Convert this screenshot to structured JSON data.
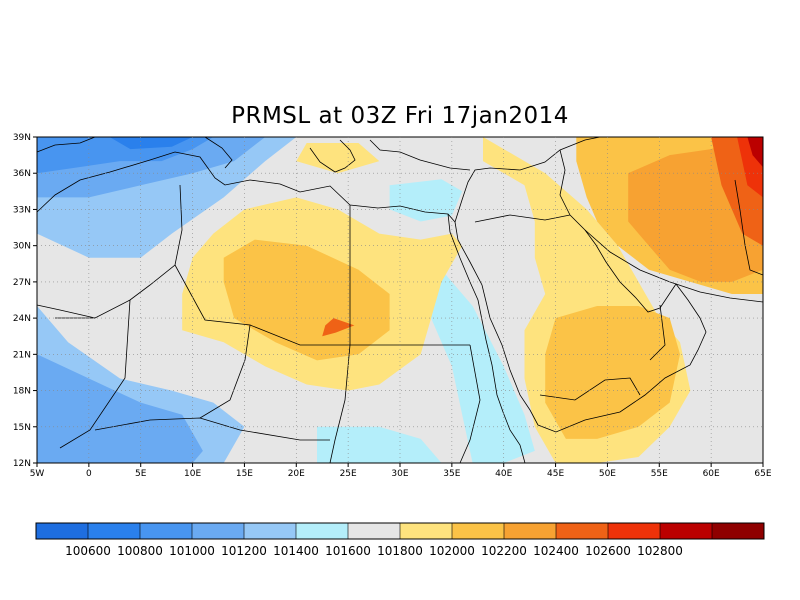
{
  "title": "PRMSL at 03Z Fri 17jan2014",
  "map": {
    "lon_range": [
      -5,
      65
    ],
    "lat_range": [
      12,
      39
    ],
    "x_ticks": [
      {
        "lon": -5,
        "label": "5W"
      },
      {
        "lon": 0,
        "label": "0"
      },
      {
        "lon": 5,
        "label": "5E"
      },
      {
        "lon": 10,
        "label": "10E"
      },
      {
        "lon": 15,
        "label": "15E"
      },
      {
        "lon": 20,
        "label": "20E"
      },
      {
        "lon": 25,
        "label": "25E"
      },
      {
        "lon": 30,
        "label": "30E"
      },
      {
        "lon": 35,
        "label": "35E"
      },
      {
        "lon": 40,
        "label": "40E"
      },
      {
        "lon": 45,
        "label": "45E"
      },
      {
        "lon": 50,
        "label": "50E"
      },
      {
        "lon": 55,
        "label": "55E"
      },
      {
        "lon": 60,
        "label": "60E"
      },
      {
        "lon": 65,
        "label": "65E"
      }
    ],
    "y_ticks": [
      {
        "lat": 12,
        "label": "12N"
      },
      {
        "lat": 15,
        "label": "15N"
      },
      {
        "lat": 18,
        "label": "18N"
      },
      {
        "lat": 21,
        "label": "21N"
      },
      {
        "lat": 24,
        "label": "24N"
      },
      {
        "lat": 27,
        "label": "27N"
      },
      {
        "lat": 30,
        "label": "30N"
      },
      {
        "lat": 33,
        "label": "33N"
      },
      {
        "lat": 36,
        "label": "36N"
      },
      {
        "lat": 39,
        "label": "39N"
      }
    ],
    "grid": "dotted"
  },
  "colorbar": {
    "colors": [
      "#1e6ee0",
      "#2a80ec",
      "#4895f0",
      "#6aaaf2",
      "#96c8f6",
      "#b4eefa",
      "#e6e6e6",
      "#fee37e",
      "#fbc347",
      "#f7a232",
      "#ef6216",
      "#ee3209",
      "#bb0000",
      "#8f0000"
    ],
    "labels": [
      "100600",
      "100800",
      "101000",
      "101200",
      "101400",
      "101600",
      "101800",
      "102000",
      "102200",
      "102400",
      "102600",
      "102800"
    ]
  },
  "regions": [
    {
      "color": "#96c8f6",
      "lonlat": [
        [
          -5,
          25
        ],
        [
          -2,
          22
        ],
        [
          3,
          19
        ],
        [
          8,
          18
        ],
        [
          12,
          17
        ],
        [
          15,
          15
        ],
        [
          13,
          12
        ],
        [
          -5,
          12
        ]
      ]
    },
    {
      "color": "#6aaaf2",
      "lonlat": [
        [
          -5,
          21
        ],
        [
          0,
          19
        ],
        [
          5,
          17
        ],
        [
          9,
          16
        ],
        [
          11,
          13
        ],
        [
          10,
          12
        ],
        [
          -5,
          12
        ]
      ]
    },
    {
      "color": "#96c8f6",
      "lonlat": [
        [
          -5,
          39
        ],
        [
          20,
          39
        ],
        [
          17,
          37
        ],
        [
          13,
          34
        ],
        [
          8,
          31
        ],
        [
          5,
          29
        ],
        [
          0,
          29
        ],
        [
          -5,
          31
        ]
      ]
    },
    {
      "color": "#6aaaf2",
      "lonlat": [
        [
          -5,
          39
        ],
        [
          17,
          39
        ],
        [
          14,
          37
        ],
        [
          10,
          36
        ],
        [
          5,
          35
        ],
        [
          0,
          34
        ],
        [
          -5,
          34
        ]
      ]
    },
    {
      "color": "#4895f0",
      "lonlat": [
        [
          -5,
          39
        ],
        [
          12,
          39
        ],
        [
          10,
          38
        ],
        [
          7,
          37
        ],
        [
          3,
          37
        ],
        [
          -1,
          36.5
        ],
        [
          -5,
          36
        ]
      ]
    },
    {
      "color": "#2a80ec",
      "lonlat": [
        [
          2,
          39
        ],
        [
          10,
          39
        ],
        [
          8,
          38.2
        ],
        [
          4,
          38
        ]
      ]
    },
    {
      "color": "#b4eefa",
      "lonlat": [
        [
          29,
          35
        ],
        [
          34,
          35.5
        ],
        [
          36,
          34.5
        ],
        [
          35,
          32.5
        ],
        [
          32,
          32
        ],
        [
          29,
          33
        ]
      ]
    },
    {
      "color": "#b4eefa",
      "lonlat": [
        [
          34,
          28
        ],
        [
          37,
          25
        ],
        [
          40,
          20
        ],
        [
          42,
          16
        ],
        [
          43,
          13
        ],
        [
          40,
          12
        ],
        [
          37,
          12
        ],
        [
          36,
          16
        ],
        [
          35,
          20
        ],
        [
          33,
          24
        ],
        [
          32,
          27
        ]
      ]
    },
    {
      "color": "#b4eefa",
      "lonlat": [
        [
          22,
          15
        ],
        [
          28,
          15
        ],
        [
          32,
          14
        ],
        [
          34,
          12
        ],
        [
          22,
          12
        ]
      ]
    },
    {
      "color": "#fee37e",
      "lonlat": [
        [
          12,
          31
        ],
        [
          15,
          33
        ],
        [
          20,
          34
        ],
        [
          24,
          33
        ],
        [
          28,
          31
        ],
        [
          32,
          30.5
        ],
        [
          35,
          31
        ],
        [
          36,
          30
        ],
        [
          34,
          27
        ],
        [
          33,
          24
        ],
        [
          32,
          21
        ],
        [
          28,
          18.5
        ],
        [
          25,
          18
        ],
        [
          21,
          18.5
        ],
        [
          17,
          20
        ],
        [
          13,
          22
        ],
        [
          9,
          23
        ],
        [
          9,
          26
        ],
        [
          10,
          29
        ]
      ]
    },
    {
      "color": "#fee37e",
      "lonlat": [
        [
          20,
          37
        ],
        [
          24,
          36
        ],
        [
          28,
          37
        ],
        [
          26,
          38.5
        ],
        [
          21,
          38.5
        ]
      ]
    },
    {
      "color": "#fee37e",
      "lonlat": [
        [
          38,
          39
        ],
        [
          44,
          36
        ],
        [
          48,
          33
        ],
        [
          51,
          30
        ],
        [
          53,
          27
        ],
        [
          55,
          24
        ],
        [
          57,
          22
        ],
        [
          58,
          18
        ],
        [
          56,
          15
        ],
        [
          53,
          12.5
        ],
        [
          49,
          12
        ],
        [
          45,
          12
        ],
        [
          43,
          15
        ],
        [
          42,
          19
        ],
        [
          42,
          23
        ],
        [
          44,
          26
        ],
        [
          43,
          29
        ],
        [
          43,
          32
        ],
        [
          42,
          35
        ],
        [
          38,
          37
        ]
      ]
    },
    {
      "color": "#fbc347",
      "lonlat": [
        [
          13,
          29
        ],
        [
          16,
          30.5
        ],
        [
          21,
          30
        ],
        [
          26,
          28
        ],
        [
          29,
          26
        ],
        [
          29,
          23
        ],
        [
          26,
          21
        ],
        [
          22,
          20.5
        ],
        [
          18,
          22
        ],
        [
          14,
          24
        ],
        [
          13,
          27
        ]
      ]
    },
    {
      "color": "#fbc347",
      "lonlat": [
        [
          45,
          24
        ],
        [
          49,
          25
        ],
        [
          53,
          25
        ],
        [
          56,
          24
        ],
        [
          57,
          21
        ],
        [
          56,
          17
        ],
        [
          53,
          15
        ],
        [
          49,
          14
        ],
        [
          46,
          14
        ],
        [
          44,
          17
        ],
        [
          44,
          21
        ]
      ]
    },
    {
      "color": "#fbc347",
      "lonlat": [
        [
          47,
          39
        ],
        [
          65,
          39
        ],
        [
          65,
          26
        ],
        [
          62,
          26
        ],
        [
          58,
          27
        ],
        [
          54,
          28
        ],
        [
          51,
          30
        ],
        [
          49,
          32
        ],
        [
          48,
          34
        ],
        [
          47,
          37
        ]
      ]
    },
    {
      "color": "#f7a232",
      "lonlat": [
        [
          52,
          36
        ],
        [
          56,
          37.5
        ],
        [
          60,
          38
        ],
        [
          63,
          39
        ],
        [
          65,
          39
        ],
        [
          65,
          28
        ],
        [
          62,
          27
        ],
        [
          59,
          27
        ],
        [
          56,
          28
        ],
        [
          54,
          30
        ],
        [
          52,
          32
        ]
      ]
    },
    {
      "color": "#ef6216",
      "lonlat": [
        [
          60,
          39
        ],
        [
          65,
          39
        ],
        [
          65,
          30
        ],
        [
          63,
          31
        ],
        [
          62,
          33
        ],
        [
          61,
          35
        ]
      ]
    },
    {
      "color": "#ee3209",
      "lonlat": [
        [
          62.5,
          39
        ],
        [
          65,
          39
        ],
        [
          65,
          34
        ],
        [
          63.5,
          35
        ],
        [
          63,
          37
        ]
      ]
    },
    {
      "color": "#bb0000",
      "lonlat": [
        [
          63.5,
          39
        ],
        [
          65,
          39
        ],
        [
          65,
          36.5
        ],
        [
          64,
          37.5
        ]
      ]
    },
    {
      "color": "#ef6216",
      "lonlat": [
        [
          23.6,
          24
        ],
        [
          25.6,
          23.4
        ],
        [
          23.8,
          22.8
        ],
        [
          22.5,
          22.5
        ],
        [
          22.8,
          23.4
        ]
      ]
    }
  ]
}
